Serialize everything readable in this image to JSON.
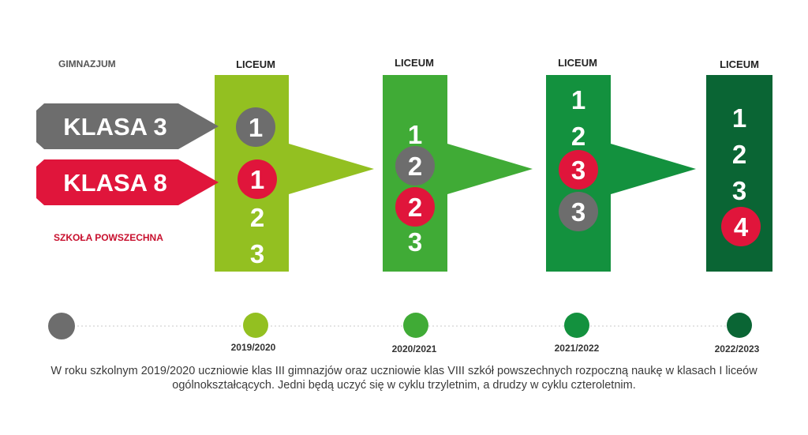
{
  "labels": {
    "gimnazjum": "GIMNAZJUM",
    "szkola": "SZKOŁA POWSZECHNA"
  },
  "arrows": {
    "klasa3": "KLASA 3",
    "klasa8": "KLASA 8"
  },
  "columns": [
    {
      "header": "LICEUM",
      "year": "2019/2020",
      "color": "#93c021",
      "numbers": [
        {
          "text": "1",
          "circle": "#6d6d6d"
        },
        {
          "text": "1",
          "circle": "#e0153b"
        },
        {
          "text": "2",
          "circle": ""
        },
        {
          "text": "3",
          "circle": ""
        }
      ]
    },
    {
      "header": "LICEUM",
      "year": "2020/2021",
      "color": "#40ab36",
      "numbers": [
        {
          "text": "1",
          "circle": ""
        },
        {
          "text": "2",
          "circle": "#6d6d6d"
        },
        {
          "text": "2",
          "circle": "#e0153b"
        },
        {
          "text": "3",
          "circle": ""
        }
      ]
    },
    {
      "header": "LICEUM",
      "year": "2021/2022",
      "color": "#13913e",
      "numbers": [
        {
          "text": "1",
          "circle": ""
        },
        {
          "text": "2",
          "circle": ""
        },
        {
          "text": "3",
          "circle": "#e0153b"
        },
        {
          "text": "3",
          "circle": "#6d6d6d"
        }
      ]
    },
    {
      "header": "LICEUM",
      "year": "2022/2023",
      "color": "#0a6534",
      "numbers": [
        {
          "text": "1",
          "circle": ""
        },
        {
          "text": "2",
          "circle": ""
        },
        {
          "text": "3",
          "circle": ""
        },
        {
          "text": "4",
          "circle": "#e0153b"
        }
      ]
    }
  ],
  "timeline": {
    "start_color": "#6d6d6d"
  },
  "colors": {
    "gray": "#6d6d6d",
    "red": "#e0153b",
    "gimnazjum_label": "#555555",
    "szkola_label": "#c8102e"
  },
  "caption": "W roku szkolnym 2019/2020 uczniowie klas III gimnazjów oraz uczniowie klas VIII szkół powszechnych rozpoczną naukę w klasach I liceów ogólnokształcących. Jedni będą uczyć się w cyklu trzyletnim, a drudzy w cyklu czteroletnim."
}
